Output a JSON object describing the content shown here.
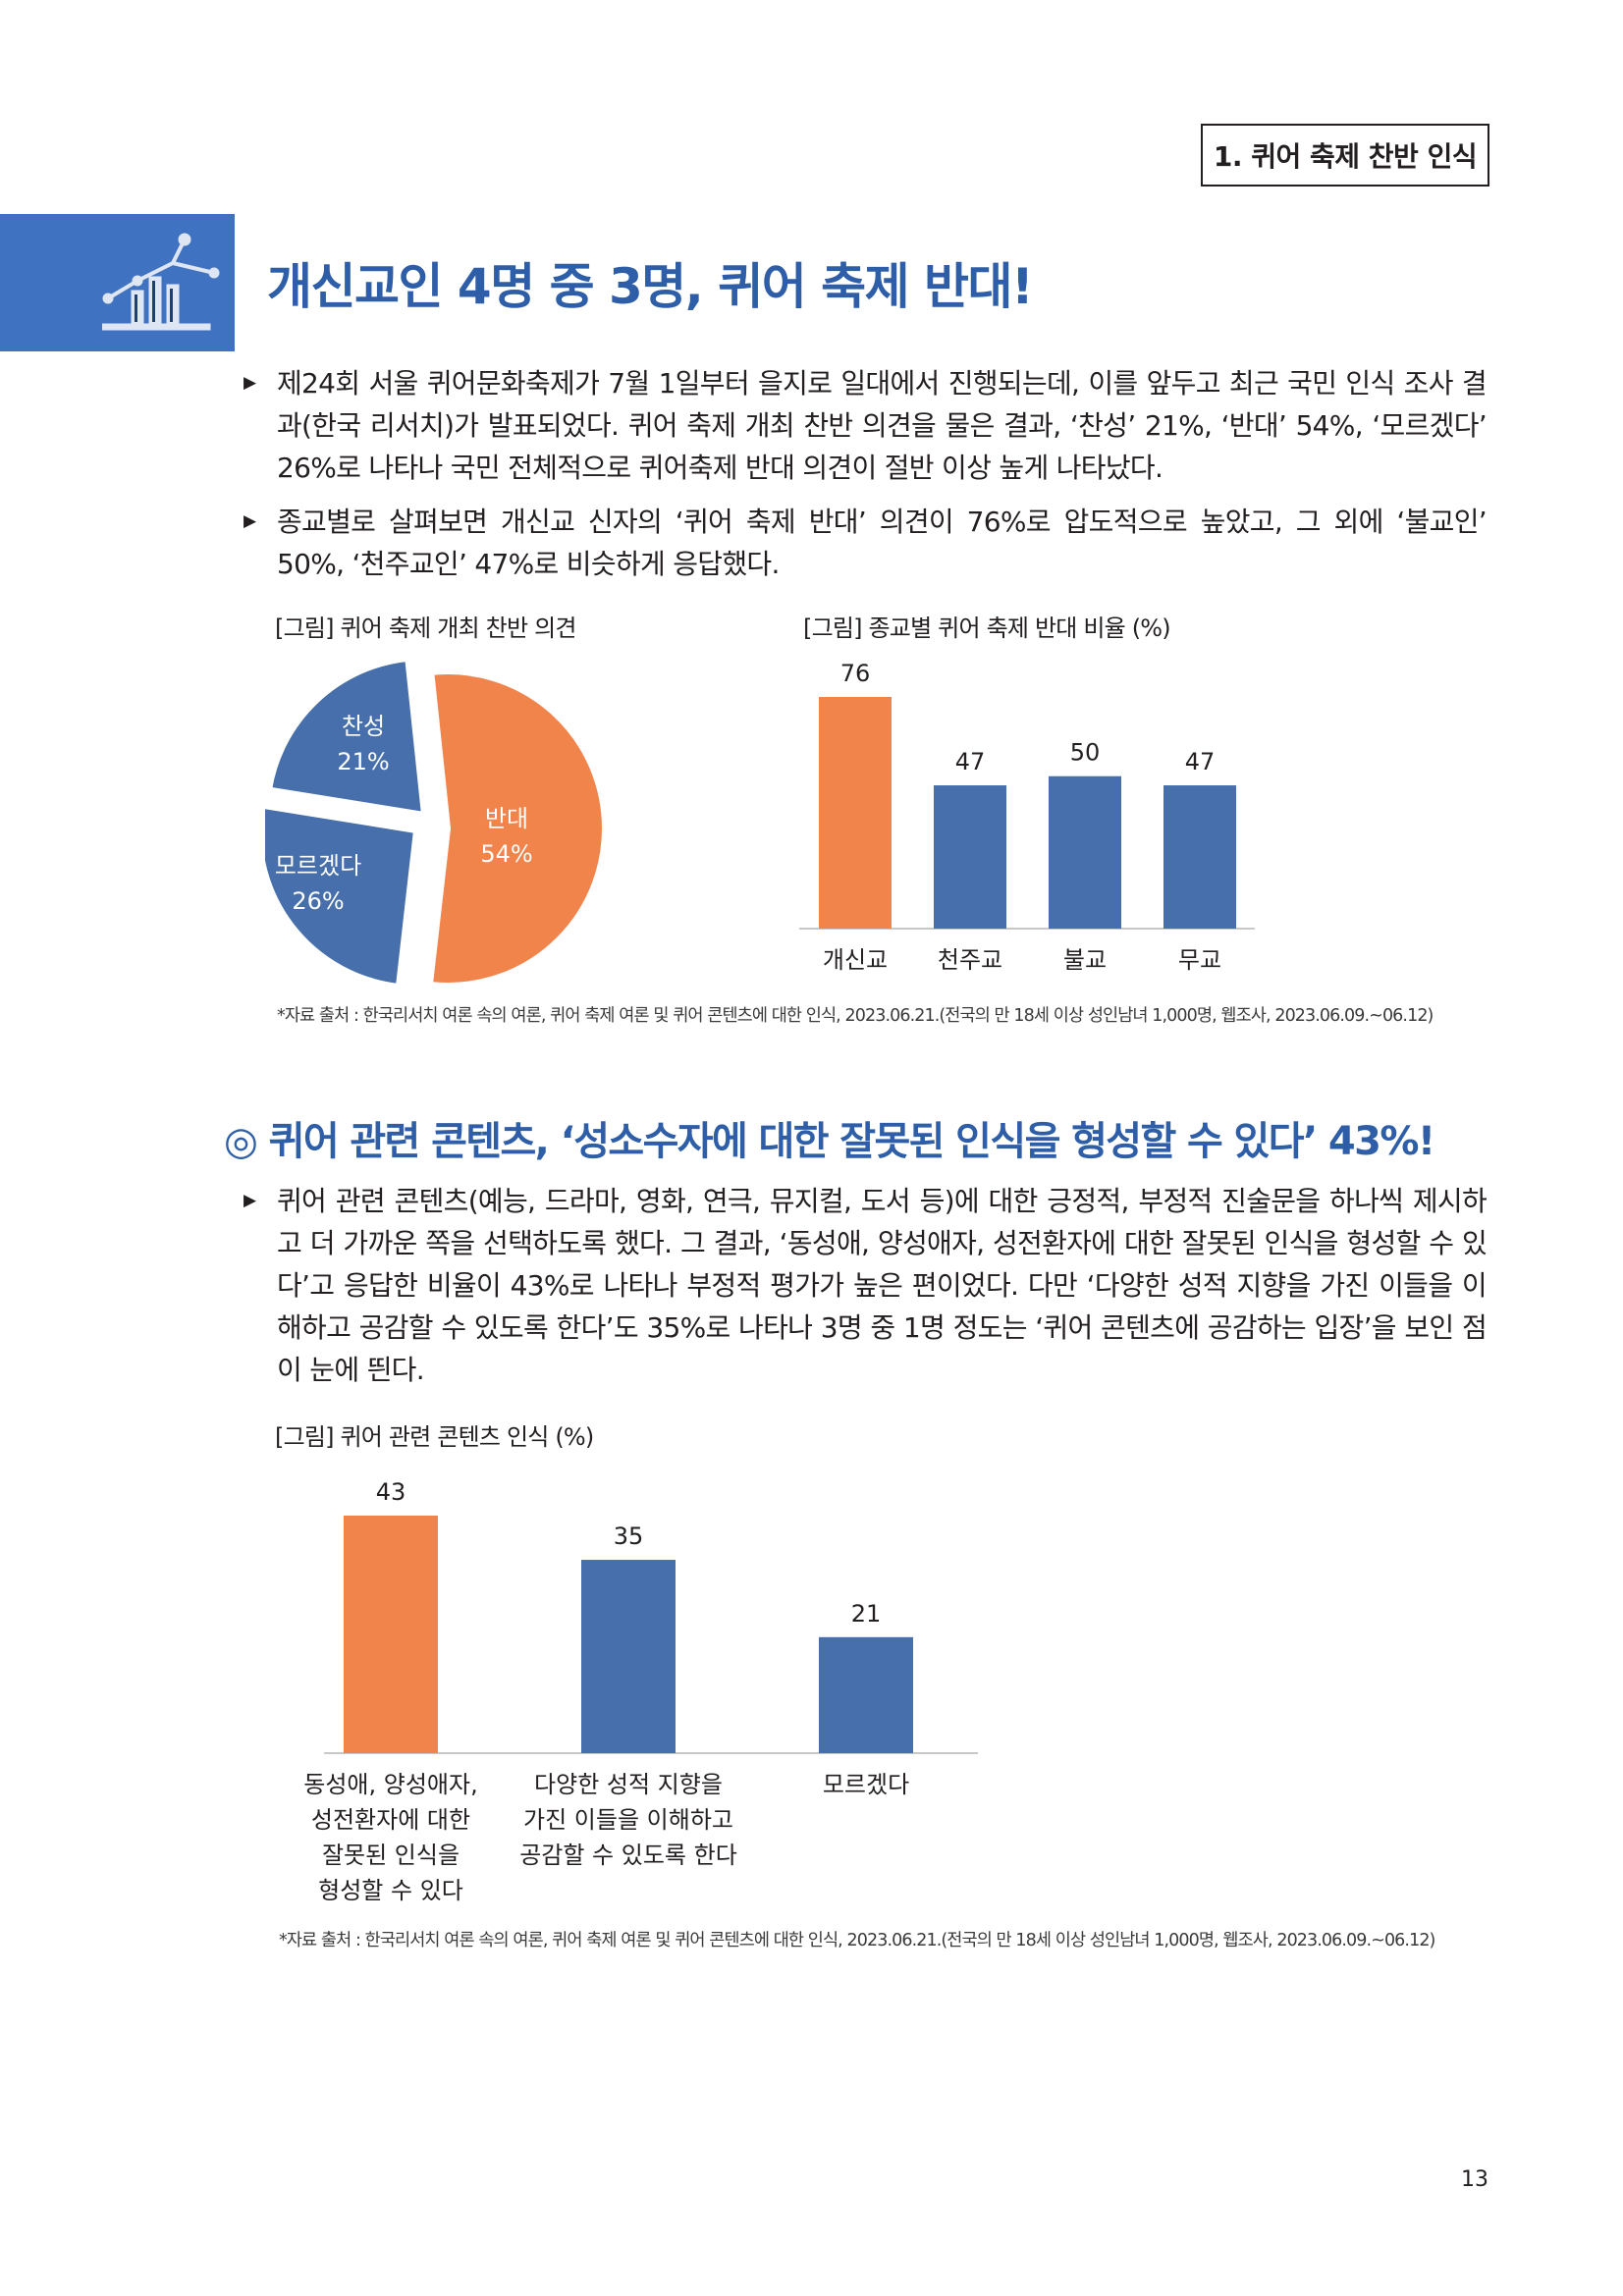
{
  "header": {
    "section_tab": "1. 퀴어 축제 찬반 인식",
    "title": "개신교인 4명 중 3명, 퀴어 축제 반대!"
  },
  "section1": {
    "paragraphs": [
      "제24회 서울 퀴어문화축제가 7월 1일부터 을지로 일대에서 진행되는데, 이를 앞두고 최근 국민 인식 조사 결과(한국 리서치)가 발표되었다. 퀴어 축제 개최 찬반 의견을 물은 결과, ‘찬성’ 21%, ‘반대’ 54%, ‘모르겠다’ 26%로 나타나 국민 전체적으로 퀴어축제 반대 의견이 절반 이상 높게 나타났다.",
      "종교별로 살펴보면 개신교 신자의 ‘퀴어 축제 반대’ 의견이 76%로 압도적으로 높았고, 그 외에 ‘불교인’ 50%, ‘천주교인’ 47%로 비슷하게 응답했다."
    ],
    "fig1_caption": "[그림] 퀴어 축제 개최 찬반 의견",
    "fig2_caption": "[그림] 종교별 퀴어 축제 반대 비율 (%)",
    "source": "*자료 출처 : 한국리서치 여론 속의 여론, 퀴어 축제 여론 및 퀴어 콘텐츠에 대한 인식, 2023.06.21.(전국의 만 18세 이상 성인남녀 1,000명, 웹조사, 2023.06.09.~06.12)"
  },
  "section2": {
    "title": "◎ 퀴어 관련 콘텐츠, ‘성소수자에 대한 잘못된 인식을 형성할 수 있다’ 43%!",
    "paragraph": "퀴어 관련 콘텐츠(예능, 드라마, 영화, 연극, 뮤지컬, 도서 등)에 대한 긍정적, 부정적 진술문을 하나씩 제시하고 더 가까운 쪽을 선택하도록 했다. 그 결과, ‘동성애, 양성애자, 성전환자에 대한 잘못된 인식을 형성할 수 있다’고 응답한 비율이 43%로 나타나 부정적 평가가 높은 편이었다. 다만 ‘다양한 성적 지향을 가진 이들을 이해하고 공감할 수 있도록 한다’도 35%로 나타나 3명 중 1명 정도는 ‘퀴어 콘텐츠에 공감하는 입장’을 보인 점이 눈에 띈다.",
    "fig_caption": "[그림] 퀴어 관련 콘텐츠 인식 (%)",
    "source": "*자료 출처 : 한국리서치 여론 속의 여론, 퀴어 축제 여론 및 퀴어 콘텐츠에 대한 인식, 2023.06.21.(전국의 만 18세 이상 성인남녀 1,000명, 웹조사, 2023.06.09.~06.12)"
  },
  "page_number": "13",
  "colors": {
    "orange": "#f0844a",
    "blue": "#466fab",
    "title_blue": "#2f5ea8"
  },
  "chart_data": [
    {
      "type": "pie",
      "labels": [
        "찬성",
        "모르겠다",
        "반대"
      ],
      "values": [
        21,
        26,
        54
      ],
      "value_labels": [
        "21%",
        "26%",
        "54%"
      ],
      "colors": [
        "#466fab",
        "#466fab",
        "#f0844a"
      ]
    },
    {
      "type": "bar",
      "categories": [
        "개신교",
        "천주교",
        "불교",
        "무교"
      ],
      "values": [
        76,
        47,
        50,
        47
      ],
      "colors": [
        "#f0844a",
        "#466fab",
        "#466fab",
        "#466fab"
      ]
    },
    {
      "type": "bar",
      "categories": [
        [
          "동성애, 양성애자,",
          "성전환자에 대한",
          "잘못된 인식을",
          "형성할 수 있다"
        ],
        [
          "다양한 성적 지향을",
          "가진 이들을 이해하고",
          "공감할 수 있도록 한다"
        ],
        [
          "모르겠다"
        ]
      ],
      "values": [
        43,
        35,
        21
      ],
      "colors": [
        "#f0844a",
        "#466fab",
        "#466fab"
      ]
    }
  ]
}
